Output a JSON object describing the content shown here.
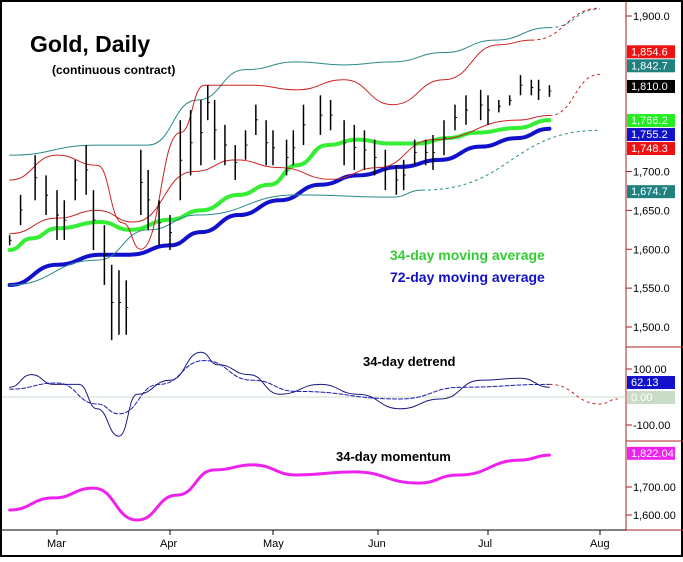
{
  "chart_data": {
    "type": "line",
    "title": "Gold, Daily",
    "subtitle": "(continuous contract)",
    "x_ticks": [
      "Mar",
      "Apr",
      "May",
      "Jun",
      "Jul",
      "Aug"
    ],
    "grid": false,
    "panels": {
      "price": {
        "y_ticks": [
          "1,900.0",
          "1,700.0",
          "1,650.0",
          "1,600.0",
          "1,550.0",
          "1,500.0"
        ],
        "y_tick_values": [
          1900,
          1700,
          1650,
          1600,
          1550,
          1500
        ],
        "ylim": [
          1470,
          1920
        ],
        "bars": [
          {
            "date": "2/16",
            "high": 1618,
            "low": 1605
          },
          {
            "date": "2/19",
            "high": 1670,
            "low": 1631
          },
          {
            "date": "2/23",
            "high": 1721,
            "low": 1663
          },
          {
            "date": "2/26",
            "high": 1695,
            "low": 1644
          },
          {
            "date": "3/1",
            "high": 1676,
            "low": 1612
          },
          {
            "date": "3/3",
            "high": 1663,
            "low": 1612
          },
          {
            "date": "3/6",
            "high": 1715,
            "low": 1663
          },
          {
            "date": "3/9",
            "high": 1734,
            "low": 1670
          },
          {
            "date": "3/11",
            "high": 1676,
            "low": 1599
          },
          {
            "date": "3/14",
            "high": 1631,
            "low": 1554
          },
          {
            "date": "3/16",
            "high": 1580,
            "low": 1483
          },
          {
            "date": "3/18",
            "high": 1573,
            "low": 1490
          },
          {
            "date": "3/20",
            "high": 1560,
            "low": 1490
          },
          {
            "date": "3/24",
            "high": 1728,
            "low": 1644
          },
          {
            "date": "3/26",
            "high": 1702,
            "low": 1625
          },
          {
            "date": "3/29",
            "high": 1663,
            "low": 1605
          },
          {
            "date": "4/1",
            "high": 1644,
            "low": 1599
          },
          {
            "date": "4/4",
            "high": 1766,
            "low": 1663
          },
          {
            "date": "4/7",
            "high": 1779,
            "low": 1695
          },
          {
            "date": "4/10",
            "high": 1792,
            "low": 1708
          },
          {
            "date": "4/12",
            "high": 1811,
            "low": 1766
          },
          {
            "date": "4/14",
            "high": 1792,
            "low": 1715
          },
          {
            "date": "4/17",
            "high": 1760,
            "low": 1708
          },
          {
            "date": "4/20",
            "high": 1734,
            "low": 1689
          },
          {
            "date": "4/23",
            "high": 1753,
            "low": 1715
          },
          {
            "date": "4/26",
            "high": 1786,
            "low": 1747
          },
          {
            "date": "4/29",
            "high": 1766,
            "low": 1708
          },
          {
            "date": "5/1",
            "high": 1753,
            "low": 1708
          },
          {
            "date": "5/5",
            "high": 1741,
            "low": 1695
          },
          {
            "date": "5/7",
            "high": 1753,
            "low": 1708
          },
          {
            "date": "5/10",
            "high": 1786,
            "low": 1734
          },
          {
            "date": "5/15",
            "high": 1798,
            "low": 1747
          },
          {
            "date": "5/18",
            "high": 1792,
            "low": 1753
          },
          {
            "date": "5/22",
            "high": 1766,
            "low": 1708
          },
          {
            "date": "5/25",
            "high": 1760,
            "low": 1702
          },
          {
            "date": "5/28",
            "high": 1753,
            "low": 1702
          },
          {
            "date": "5/31",
            "high": 1741,
            "low": 1695
          },
          {
            "date": "6/3",
            "high": 1728,
            "low": 1676
          },
          {
            "date": "6/6",
            "high": 1708,
            "low": 1670
          },
          {
            "date": "6/8",
            "high": 1715,
            "low": 1676
          },
          {
            "date": "6/11",
            "high": 1741,
            "low": 1708
          },
          {
            "date": "6/14",
            "high": 1741,
            "low": 1708
          },
          {
            "date": "6/16",
            "high": 1747,
            "low": 1702
          },
          {
            "date": "6/19",
            "high": 1766,
            "low": 1721
          },
          {
            "date": "6/22",
            "high": 1786,
            "low": 1753
          },
          {
            "date": "6/25",
            "high": 1798,
            "low": 1760
          },
          {
            "date": "6/29",
            "high": 1805,
            "low": 1766
          },
          {
            "date": "7/1",
            "high": 1798,
            "low": 1760
          },
          {
            "date": "7/4",
            "high": 1792,
            "low": 1776
          },
          {
            "date": "7/7",
            "high": 1798,
            "low": 1785
          },
          {
            "date": "7/10",
            "high": 1824,
            "low": 1798
          },
          {
            "date": "7/13",
            "high": 1818,
            "low": 1798
          },
          {
            "date": "7/15",
            "high": 1818,
            "low": 1792
          },
          {
            "date": "7/18",
            "high": 1811,
            "low": 1796
          }
        ],
        "series": [
          {
            "name": "34-day moving average",
            "color": "#33ee33",
            "width": 4,
            "points": [
              [
                "2/16",
                1599
              ],
              [
                "2/22",
                1614
              ],
              [
                "3/1",
                1627
              ],
              [
                "3/13",
                1635
              ],
              [
                "3/21",
                1625
              ],
              [
                "4/1",
                1638
              ],
              [
                "4/10",
                1650
              ],
              [
                "4/21",
                1670
              ],
              [
                "4/30",
                1683
              ],
              [
                "5/8",
                1708
              ],
              [
                "5/17",
                1734
              ],
              [
                "5/26",
                1741
              ],
              [
                "6/4",
                1736
              ],
              [
                "6/12",
                1736
              ],
              [
                "6/20",
                1743
              ],
              [
                "6/28",
                1750
              ],
              [
                "7/9",
                1756
              ],
              [
                "7/18",
                1766
              ]
            ]
          },
          {
            "name": "72-day moving average",
            "color": "#1111cc",
            "width": 4,
            "points": [
              [
                "2/16",
                1554
              ],
              [
                "3/1",
                1580
              ],
              [
                "3/13",
                1593
              ],
              [
                "3/21",
                1593
              ],
              [
                "4/1",
                1605
              ],
              [
                "4/10",
                1622
              ],
              [
                "4/21",
                1644
              ],
              [
                "5/3",
                1663
              ],
              [
                "5/15",
                1683
              ],
              [
                "5/26",
                1695
              ],
              [
                "6/7",
                1706
              ],
              [
                "6/18",
                1715
              ],
              [
                "6/29",
                1732
              ],
              [
                "7/9",
                1743
              ],
              [
                "7/18",
                1755
              ]
            ]
          },
          {
            "color": "#2a8a8a",
            "width": 1,
            "points": [
              [
                "2/16",
                1721
              ],
              [
                "3/12",
                1734
              ],
              [
                "3/26",
                1734
              ],
              [
                "4/9",
                1792
              ],
              [
                "4/23",
                1831
              ],
              [
                "5/8",
                1841
              ],
              [
                "5/22",
                1837
              ],
              [
                "6/5",
                1841
              ],
              [
                "6/19",
                1853
              ],
              [
                "7/3",
                1869
              ],
              [
                "7/18",
                1885
              ]
            ],
            "projection": [
              [
                "7/18",
                1885
              ],
              [
                "8/1",
                1909
              ]
            ]
          },
          {
            "color": "#2a8a8a",
            "width": 1,
            "points": [
              [
                "2/16",
                1554
              ],
              [
                "3/12",
                1586
              ],
              [
                "3/26",
                1625
              ],
              [
                "4/9",
                1644
              ],
              [
                "5/8",
                1670
              ],
              [
                "6/5",
                1667
              ],
              [
                "6/13",
                1676
              ]
            ],
            "projection": [
              [
                "6/13",
                1676
              ],
              [
                "8/1",
                1753
              ]
            ]
          },
          {
            "color": "#cc2222",
            "width": 1,
            "points": [
              [
                "2/16",
                1689
              ],
              [
                "3/1",
                1721
              ],
              [
                "3/12",
                1708
              ],
              [
                "3/19",
                1634
              ],
              [
                "3/24",
                1600
              ],
              [
                "4/4",
                1750
              ],
              [
                "4/11",
                1811
              ],
              [
                "4/25",
                1811
              ],
              [
                "5/8",
                1805
              ],
              [
                "5/22",
                1818
              ],
              [
                "6/5",
                1786
              ],
              [
                "6/19",
                1818
              ],
              [
                "7/4",
                1863
              ],
              [
                "7/13",
                1869
              ]
            ],
            "projection": [
              [
                "7/13",
                1869
              ],
              [
                "8/1",
                1910
              ]
            ]
          },
          {
            "color": "#cc2222",
            "width": 1,
            "points": [
              [
                "2/16",
                1620
              ],
              [
                "3/1",
                1640
              ],
              [
                "3/12",
                1650
              ],
              [
                "3/22",
                1635
              ],
              [
                "4/8",
                1700
              ],
              [
                "4/20",
                1715
              ],
              [
                "5/3",
                1705
              ],
              [
                "5/18",
                1690
              ],
              [
                "6/1",
                1705
              ],
              [
                "6/16",
                1741
              ],
              [
                "7/9",
                1766
              ],
              [
                "7/18",
                1772
              ]
            ],
            "projection": [
              [
                "7/18",
                1772
              ],
              [
                "8/1",
                1825
              ]
            ]
          }
        ],
        "annotations": [
          {
            "text": "34-day moving average",
            "color": "#33cc33"
          },
          {
            "text": "72-day moving average",
            "color": "#1111cc"
          }
        ],
        "value_labels": [
          {
            "text": "1,854.6",
            "value": 1854.6,
            "color": "#ee1111"
          },
          {
            "text": "1,842.7",
            "value": 1842.7,
            "color": "#1f8080"
          },
          {
            "text": "1,810.0",
            "value": 1810.0,
            "color": "#000000"
          },
          {
            "text": "1,766.2",
            "value": 1766.2,
            "color": "#22ee22"
          },
          {
            "text": "1,755.2",
            "value": 1755.2,
            "color": "#1111cc"
          },
          {
            "text": "1,748.3",
            "value": 1748.3,
            "color": "#ee1111"
          },
          {
            "text": "1,674.7",
            "value": 1674.7,
            "color": "#1f8080"
          }
        ]
      },
      "detrend": {
        "label": "34-day detrend",
        "y_ticks": [
          "100.00",
          "-100.00"
        ],
        "y_tick_values": [
          100,
          -100
        ],
        "ylim": [
          -160,
          180
        ],
        "series": [
          {
            "color": "#1a1a80",
            "width": 1,
            "points": [
              [
                "2/16",
                35
              ],
              [
                "2/22",
                80
              ],
              [
                "2/28",
                45
              ],
              [
                "3/7",
                45
              ],
              [
                "3/12",
                -42
              ],
              [
                "3/18",
                -140
              ],
              [
                "3/23",
                10
              ],
              [
                "4/1",
                60
              ],
              [
                "4/10",
                160
              ],
              [
                "4/15",
                115
              ],
              [
                "4/24",
                80
              ],
              [
                "5/3",
                10
              ],
              [
                "5/15",
                45
              ],
              [
                "5/26",
                10
              ],
              [
                "6/7",
                -42
              ],
              [
                "6/18",
                -7
              ],
              [
                "6/29",
                60
              ],
              [
                "7/10",
                67
              ],
              [
                "7/18",
                35
              ]
            ]
          },
          {
            "color": "#1a1aaa",
            "width": 1,
            "dashed": true,
            "points": [
              [
                "2/16",
                28
              ],
              [
                "3/1",
                50
              ],
              [
                "3/12",
                -25
              ],
              [
                "3/18",
                -60
              ],
              [
                "3/29",
                45
              ],
              [
                "4/11",
                130
              ],
              [
                "4/25",
                60
              ],
              [
                "5/8",
                20
              ],
              [
                "6/7",
                -7
              ],
              [
                "6/24",
                35
              ],
              [
                "7/18",
                45
              ]
            ],
            "projection": [
              [
                "7/18",
                45
              ],
              [
                "8/1",
                -25
              ],
              [
                "8/6",
                -7
              ]
            ]
          }
        ],
        "value_labels": [
          {
            "text": "62.13",
            "value": 62.13,
            "color": "#1111cc"
          },
          {
            "text": "0.00",
            "value": 0,
            "color": "#c8dcc8"
          }
        ]
      },
      "momentum": {
        "label": "34-day momentum",
        "y_ticks": [
          "1,700.00",
          "1,600.00"
        ],
        "y_tick_values": [
          1700,
          1600
        ],
        "ylim": [
          1550,
          1900
        ],
        "series": [
          {
            "color": "#ee22ee",
            "width": 3,
            "points": [
              [
                "2/16",
                1618
              ],
              [
                "2/28",
                1661
              ],
              [
                "3/11",
                1696
              ],
              [
                "3/23",
                1582
              ],
              [
                "4/3",
                1671
              ],
              [
                "4/14",
                1761
              ],
              [
                "4/25",
                1779
              ],
              [
                "5/8",
                1743
              ],
              [
                "5/25",
                1754
              ],
              [
                "6/12",
                1714
              ],
              [
                "6/23",
                1743
              ],
              [
                "7/10",
                1796
              ],
              [
                "7/18",
                1814
              ]
            ]
          }
        ],
        "value_labels": [
          {
            "text": "1,822.04",
            "value": 1822.04,
            "color": "#ee22ee"
          }
        ]
      }
    }
  }
}
